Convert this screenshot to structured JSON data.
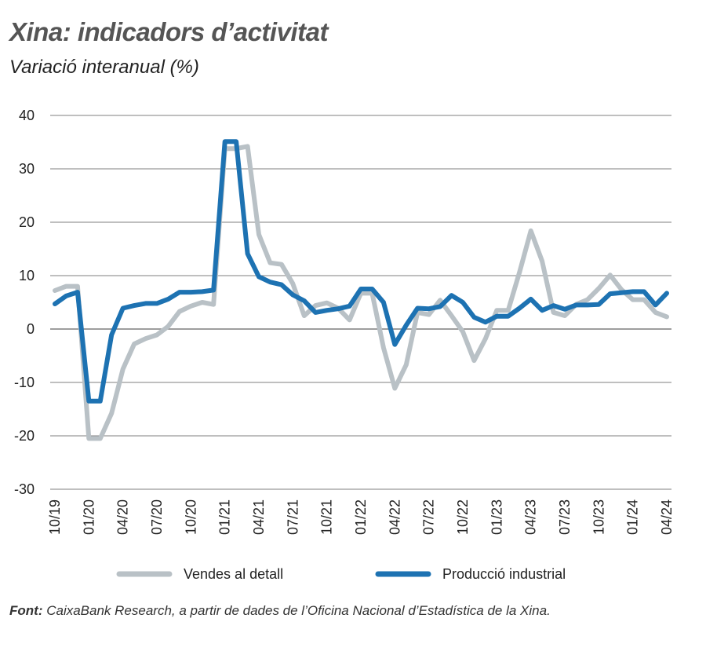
{
  "header": {
    "title": "Xina: indicadors d’activitat",
    "subtitle": "Variació interanual (%)"
  },
  "source": {
    "label": "Font:",
    "text": "CaixaBank Research, a partir de dades de l’Oficina Nacional d’Estadística de la Xina."
  },
  "colors": {
    "retail": "#b9c1c6",
    "industrial": "#1d72b2",
    "grid": "#7f7f7f"
  },
  "chart_data": {
    "type": "line",
    "title": "Xina: indicadors d’activitat",
    "subtitle": "Variació interanual (%)",
    "xlabel": "",
    "ylabel": "",
    "ylim": [
      -30,
      40
    ],
    "yticks": [
      40,
      30,
      20,
      10,
      0,
      -10,
      -20,
      -30
    ],
    "grid": true,
    "legend_position": "bottom",
    "xtick_labels": [
      "10/19",
      "01/20",
      "04/20",
      "07/20",
      "10/20",
      "01/21",
      "04/21",
      "07/21",
      "10/21",
      "01/22",
      "04/22",
      "07/22",
      "10/22",
      "01/23",
      "04/23",
      "07/23",
      "10/23",
      "01/24",
      "04/24"
    ],
    "x": [
      "10/19",
      "11/19",
      "12/19",
      "01/20",
      "02/20",
      "03/20",
      "04/20",
      "05/20",
      "06/20",
      "07/20",
      "08/20",
      "09/20",
      "10/20",
      "11/20",
      "12/20",
      "01/21",
      "02/21",
      "03/21",
      "04/21",
      "05/21",
      "06/21",
      "07/21",
      "08/21",
      "09/21",
      "10/21",
      "11/21",
      "12/21",
      "01/22",
      "02/22",
      "03/22",
      "04/22",
      "05/22",
      "06/22",
      "07/22",
      "08/22",
      "09/22",
      "10/22",
      "11/22",
      "12/22",
      "01/23",
      "02/23",
      "03/23",
      "04/23",
      "05/23",
      "06/23",
      "07/23",
      "08/23",
      "09/23",
      "10/23",
      "11/23",
      "12/23",
      "01/24",
      "02/24",
      "03/24",
      "04/24"
    ],
    "series": [
      {
        "name": "Vendes al detall",
        "values": [
          7.2,
          8.0,
          8.0,
          -20.5,
          -20.5,
          -15.8,
          -7.5,
          -2.8,
          -1.8,
          -1.1,
          0.5,
          3.3,
          4.3,
          5.0,
          4.6,
          33.8,
          33.8,
          34.2,
          17.7,
          12.4,
          12.1,
          8.5,
          2.5,
          4.4,
          4.9,
          3.9,
          1.7,
          6.7,
          6.7,
          -3.5,
          -11.1,
          -6.7,
          3.1,
          2.7,
          5.4,
          2.5,
          -0.5,
          -5.9,
          -1.8,
          3.5,
          3.5,
          10.6,
          18.4,
          12.7,
          3.1,
          2.5,
          4.6,
          5.5,
          7.6,
          10.1,
          7.4,
          5.5,
          5.5,
          3.1,
          2.3
        ]
      },
      {
        "name": "Producció industrial",
        "values": [
          4.7,
          6.2,
          6.9,
          -13.5,
          -13.5,
          -1.1,
          3.9,
          4.4,
          4.8,
          4.8,
          5.6,
          6.9,
          6.9,
          7.0,
          7.3,
          35.1,
          35.1,
          14.1,
          9.8,
          8.8,
          8.3,
          6.4,
          5.3,
          3.1,
          3.5,
          3.8,
          4.3,
          7.5,
          7.5,
          5.0,
          -2.9,
          0.7,
          3.9,
          3.8,
          4.2,
          6.3,
          5.0,
          2.2,
          1.3,
          2.4,
          2.4,
          3.9,
          5.6,
          3.5,
          4.4,
          3.7,
          4.5,
          4.5,
          4.6,
          6.6,
          6.8,
          7.0,
          7.0,
          4.5,
          6.7
        ]
      }
    ]
  }
}
